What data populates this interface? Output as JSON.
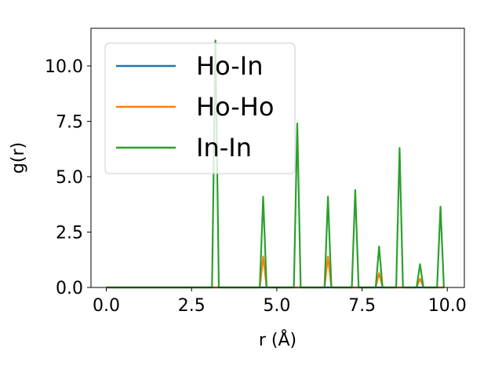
{
  "chart_data": {
    "type": "line",
    "title": "",
    "xlabel": "r (Å)",
    "ylabel": "g(r)",
    "xlim": [
      -0.45,
      10.5
    ],
    "ylim": [
      0.0,
      11.7
    ],
    "xticks": [
      0.0,
      2.5,
      5.0,
      7.5,
      10.0
    ],
    "xtick_labels": [
      "0.0",
      "2.5",
      "5.0",
      "7.5",
      "10.0"
    ],
    "yticks": [
      0.0,
      2.5,
      5.0,
      7.5,
      10.0
    ],
    "ytick_labels": [
      "0.0",
      "2.5",
      "5.0",
      "7.5",
      "10.0"
    ],
    "grid": false,
    "legend_position": "upper-left",
    "colors": {
      "Ho-In": "#1f77b4",
      "Ho-Ho": "#ff7f0e",
      "In-In": "#2ca02c"
    },
    "series": [
      {
        "name": "Ho-In",
        "x": [
          0.0,
          3.1,
          3.2,
          3.3,
          4.5,
          4.6,
          4.7,
          5.5,
          5.6,
          5.7,
          6.4,
          6.5,
          6.6,
          7.2,
          7.3,
          7.4,
          7.9,
          8.0,
          8.1,
          8.5,
          8.6,
          8.7,
          9.1,
          9.2,
          9.3,
          9.7,
          9.8,
          9.9
        ],
        "y": [
          0,
          0,
          0,
          0,
          0,
          0,
          0,
          0,
          0,
          0,
          0,
          0,
          0,
          0,
          0,
          0,
          0,
          0,
          0,
          0,
          0,
          0,
          0,
          0,
          0,
          0,
          0,
          0
        ]
      },
      {
        "name": "Ho-Ho",
        "x": [
          0.0,
          3.1,
          3.2,
          3.3,
          4.5,
          4.6,
          4.7,
          5.5,
          5.6,
          5.7,
          6.4,
          6.5,
          6.6,
          7.2,
          7.3,
          7.4,
          7.9,
          8.0,
          8.1,
          8.5,
          8.6,
          8.7,
          9.1,
          9.2,
          9.3,
          9.7,
          9.8,
          9.9
        ],
        "y": [
          0,
          0,
          0,
          0,
          0,
          1.4,
          0,
          0,
          0,
          0,
          0,
          1.4,
          0,
          0,
          0,
          0,
          0,
          0.65,
          0,
          0,
          0,
          0,
          0,
          0.4,
          0,
          0,
          0,
          0
        ]
      },
      {
        "name": "In-In",
        "x": [
          0.0,
          3.1,
          3.2,
          3.3,
          4.5,
          4.6,
          4.7,
          5.5,
          5.6,
          5.7,
          6.4,
          6.5,
          6.6,
          7.2,
          7.3,
          7.4,
          7.9,
          8.0,
          8.1,
          8.5,
          8.6,
          8.7,
          9.1,
          9.2,
          9.3,
          9.7,
          9.8,
          9.9
        ],
        "y": [
          0,
          0,
          11.15,
          0,
          0,
          4.1,
          0,
          0,
          7.4,
          0,
          0,
          4.1,
          0,
          0,
          4.4,
          0,
          0,
          1.85,
          0,
          0,
          6.3,
          0,
          0,
          1.05,
          0,
          0,
          3.65,
          0
        ]
      }
    ]
  }
}
